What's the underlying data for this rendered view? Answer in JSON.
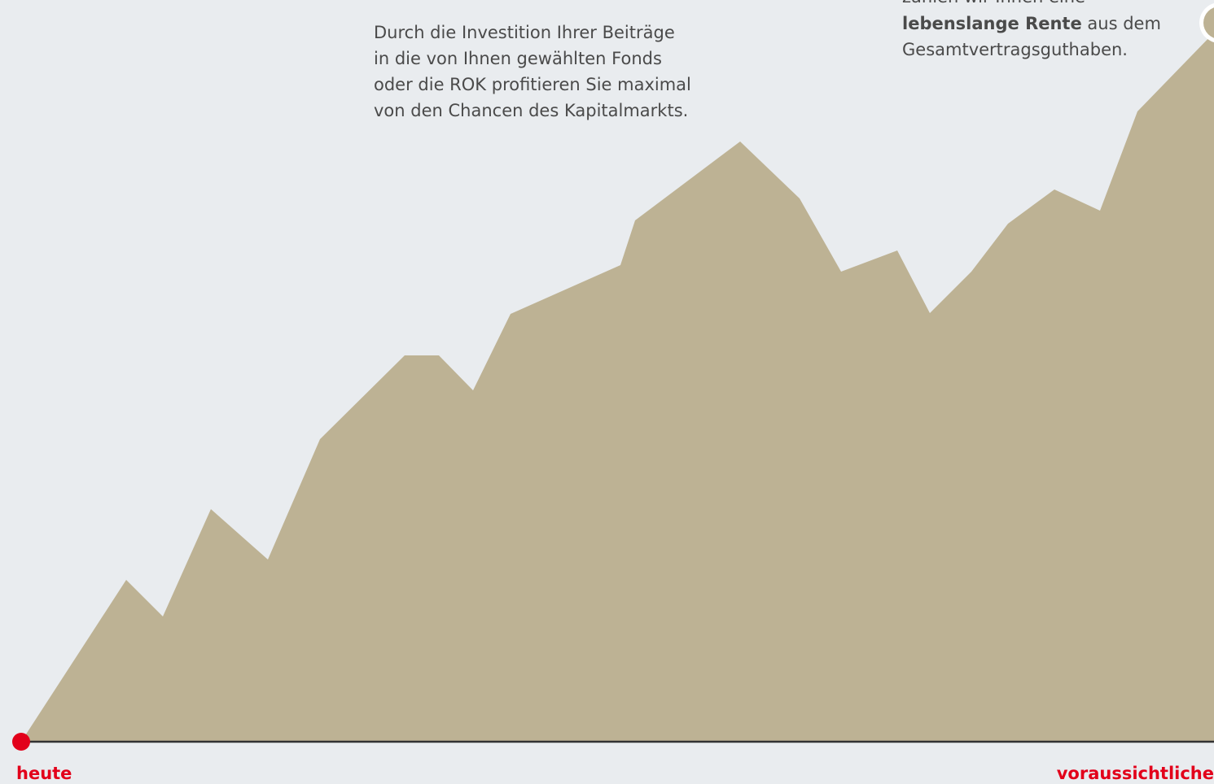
{
  "investment_text": {
    "lines": [
      "Durch die Investition Ihrer Beiträge",
      "in die von Ihnen gewählten Fonds",
      "oder die ROK profitieren Sie maximal",
      "von den Chancen des Kapitalmarkts."
    ]
  },
  "pension_text": {
    "line1": "zahlen wir Ihnen eine",
    "bold": "lebenslange Rente",
    "rest": "aus dem",
    "line3": "Gesamtvertragsguthaben."
  },
  "timeline": {
    "start": "heute",
    "end": "voraussichtliche"
  }
}
